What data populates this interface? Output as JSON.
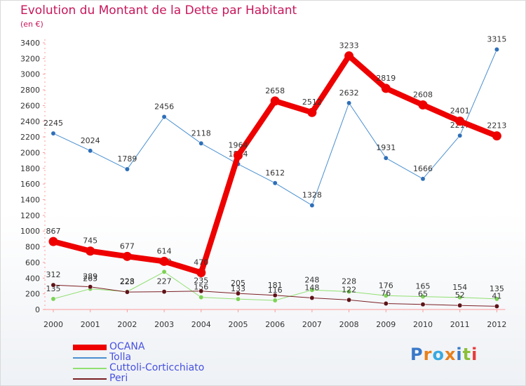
{
  "title": "Evolution du Montant de la Dette par Habitant",
  "unit": "(en €)",
  "brand": {
    "text": "Proxiti",
    "letter_colors": [
      "#3a78c8",
      "#e8801c",
      "#3aa9e0",
      "#e8801c",
      "#3a78c8",
      "#8bbf3a",
      "#e83a3a"
    ]
  },
  "chart_data": {
    "type": "line",
    "title": "Evolution du Montant de la Dette par Habitant",
    "ylabel": "(en €)",
    "xlabel": "",
    "x": [
      "2000",
      "2001",
      "2002",
      "2003",
      "2004",
      "2005",
      "2006",
      "2007",
      "2008",
      "2009",
      "2010",
      "2011",
      "2012"
    ],
    "yticks": [
      0,
      200,
      400,
      600,
      800,
      1000,
      1200,
      1400,
      1600,
      1800,
      2000,
      2200,
      2400,
      2600,
      2800,
      3000,
      3200,
      3400
    ],
    "ylim": [
      0,
      3400
    ],
    "grid": false,
    "legend_position": "bottom-left",
    "series": [
      {
        "name": "Tolla",
        "color": "#4a8fd0",
        "marker": "#2e6fb8",
        "width": 1,
        "values": [
          2245,
          2024,
          1789,
          2456,
          2118,
          1854,
          1612,
          1328,
          2632,
          1931,
          1666,
          2217,
          3315
        ]
      },
      {
        "name": "Cuttoli-Corticchiato",
        "color": "#90e070",
        "marker": "#7dd258",
        "width": 1,
        "values": [
          135,
          263,
          228,
          480,
          156,
          133,
          116,
          248,
          228,
          176,
          165,
          154,
          135
        ]
      },
      {
        "name": "Peri",
        "color": "#7a1f24",
        "marker": "#5e1318",
        "width": 1,
        "values": [
          312,
          289,
          223,
          227,
          235,
          205,
          181,
          148,
          122,
          76,
          65,
          52,
          41
        ]
      },
      {
        "name": "OCANA",
        "color": "#ee0000",
        "marker": "#ee0000",
        "width": 8,
        "values": [
          867,
          745,
          677,
          614,
          470,
          1964,
          2658,
          2512,
          3233,
          2819,
          2608,
          2401,
          2213
        ]
      }
    ],
    "legend_order": [
      "OCANA",
      "Tolla",
      "Cuttoli-Corticchiato",
      "Peri"
    ]
  }
}
